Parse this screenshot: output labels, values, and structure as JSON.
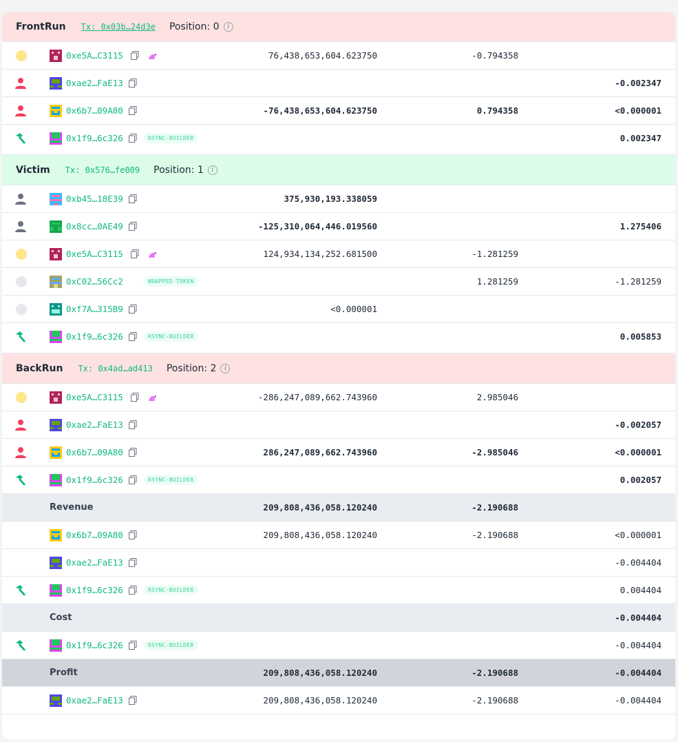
{
  "sections": [
    {
      "title": "FrontRun",
      "tx": "Tx: 0x03b…24d3e",
      "position_label": "Position: 0",
      "info_icon": "info-icon",
      "rows": [
        {
          "role": "dot-yellow",
          "address": "0xe5A…C3115",
          "tag": "uniswap-icon",
          "amount": "76,438,653,604.623750",
          "value": "-0.794358",
          "eth": ""
        },
        {
          "role": "user-red",
          "address": "0xae2…FaE13",
          "tag": "",
          "amount": "",
          "value": "",
          "eth": "-0.002347"
        },
        {
          "role": "user-red",
          "address": "0x6b7…09A80",
          "tag": "",
          "amount": "-76,438,653,604.623750",
          "value": "0.794358",
          "eth": "<0.000001"
        },
        {
          "role": "hammer",
          "address": "0x1f9…6c326",
          "tag": "RSYNC-BUILDER",
          "amount": "",
          "value": "",
          "eth": "0.002347"
        }
      ]
    },
    {
      "title": "Victim",
      "tx": "Tx: 0x576…fe009",
      "position_label": "Position: 1",
      "info_icon": "info-icon",
      "rows": [
        {
          "role": "user-gray",
          "address": "0xb45…18E39",
          "tag": "",
          "amount": "375,930,193.338059",
          "value": "",
          "eth": ""
        },
        {
          "role": "user-gray",
          "address": "0x8cc…0AE49",
          "tag": "",
          "amount": "-125,310,064,446.019560",
          "value": "",
          "eth": "1.275406"
        },
        {
          "role": "dot-yellow",
          "address": "0xe5A…C3115",
          "tag": "uniswap-icon",
          "amount": "124,934,134,252.681500",
          "value": "-1.281259",
          "eth": ""
        },
        {
          "role": "dot-gray",
          "address": "0xC02…56Cc2",
          "tag": "WRAPPED-TOKEN",
          "amount": "",
          "value": "1.281259",
          "eth": "-1.281259"
        },
        {
          "role": "dot-gray",
          "address": "0xf7A…315B9",
          "tag": "",
          "amount": "<0.000001",
          "value": "",
          "eth": ""
        },
        {
          "role": "hammer",
          "address": "0x1f9…6c326",
          "tag": "RSYNC-BUILDER",
          "amount": "",
          "value": "",
          "eth": "0.005853"
        }
      ]
    },
    {
      "title": "BackRun",
      "tx": "Tx: 0x4ad…ad413",
      "position_label": "Position: 2",
      "info_icon": "info-icon",
      "rows": [
        {
          "role": "dot-yellow",
          "address": "0xe5A…C3115",
          "tag": "uniswap-icon",
          "amount": "-286,247,089,662.743960",
          "value": "2.985046",
          "eth": ""
        },
        {
          "role": "user-red",
          "address": "0xae2…FaE13",
          "tag": "",
          "amount": "",
          "value": "",
          "eth": "-0.002057"
        },
        {
          "role": "user-red",
          "address": "0x6b7…09A80",
          "tag": "",
          "amount": "286,247,089,662.743960",
          "value": "-2.985046",
          "eth": "<0.000001"
        },
        {
          "role": "hammer",
          "address": "0x1f9…6c326",
          "tag": "RSYNC-BUILDER",
          "amount": "",
          "value": "",
          "eth": "0.002057"
        }
      ]
    }
  ],
  "summary": {
    "revenue": {
      "label": "Revenue",
      "amount": "209,808,436,058.120240",
      "value": "-2.190688",
      "eth": "",
      "rows": [
        {
          "role": "",
          "address": "0x6b7…09A80",
          "tag": "",
          "amount": "209,808,436,058.120240",
          "value": "-2.190688",
          "eth": "<0.000001"
        },
        {
          "role": "",
          "address": "0xae2…FaE13",
          "tag": "",
          "amount": "",
          "value": "",
          "eth": "-0.004404"
        },
        {
          "role": "hammer",
          "address": "0x1f9…6c326",
          "tag": "RSYNC-BUILDER",
          "amount": "",
          "value": "",
          "eth": "0.004404"
        }
      ]
    },
    "cost": {
      "label": "Cost",
      "amount": "",
      "value": "",
      "eth": "-0.004404",
      "rows": [
        {
          "role": "hammer",
          "address": "0x1f9…6c326",
          "tag": "RSYNC-BUILDER",
          "amount": "",
          "value": "",
          "eth": "-0.004404"
        }
      ]
    },
    "profit": {
      "label": "Profit",
      "amount": "209,808,436,058.120240",
      "value": "-2.190688",
      "eth": "-0.004404",
      "rows": [
        {
          "role": "",
          "address": "0xae2…FaE13",
          "tag": "",
          "amount": "209,808,436,058.120240",
          "value": "-2.190688",
          "eth": "-0.004404"
        }
      ]
    }
  },
  "colors": {
    "accent": "#10b981",
    "frontrun_bg": "#fee2e2",
    "victim_bg": "#dcfce7",
    "summary_bg": "#e9ecf0",
    "profit_bg": "#d1d5db"
  },
  "icons": {
    "copy": "copy-icon",
    "hammer": "hammer-icon",
    "user": "user-icon",
    "unicorn": "uniswap-icon",
    "avatar": "identicon-avatar"
  }
}
